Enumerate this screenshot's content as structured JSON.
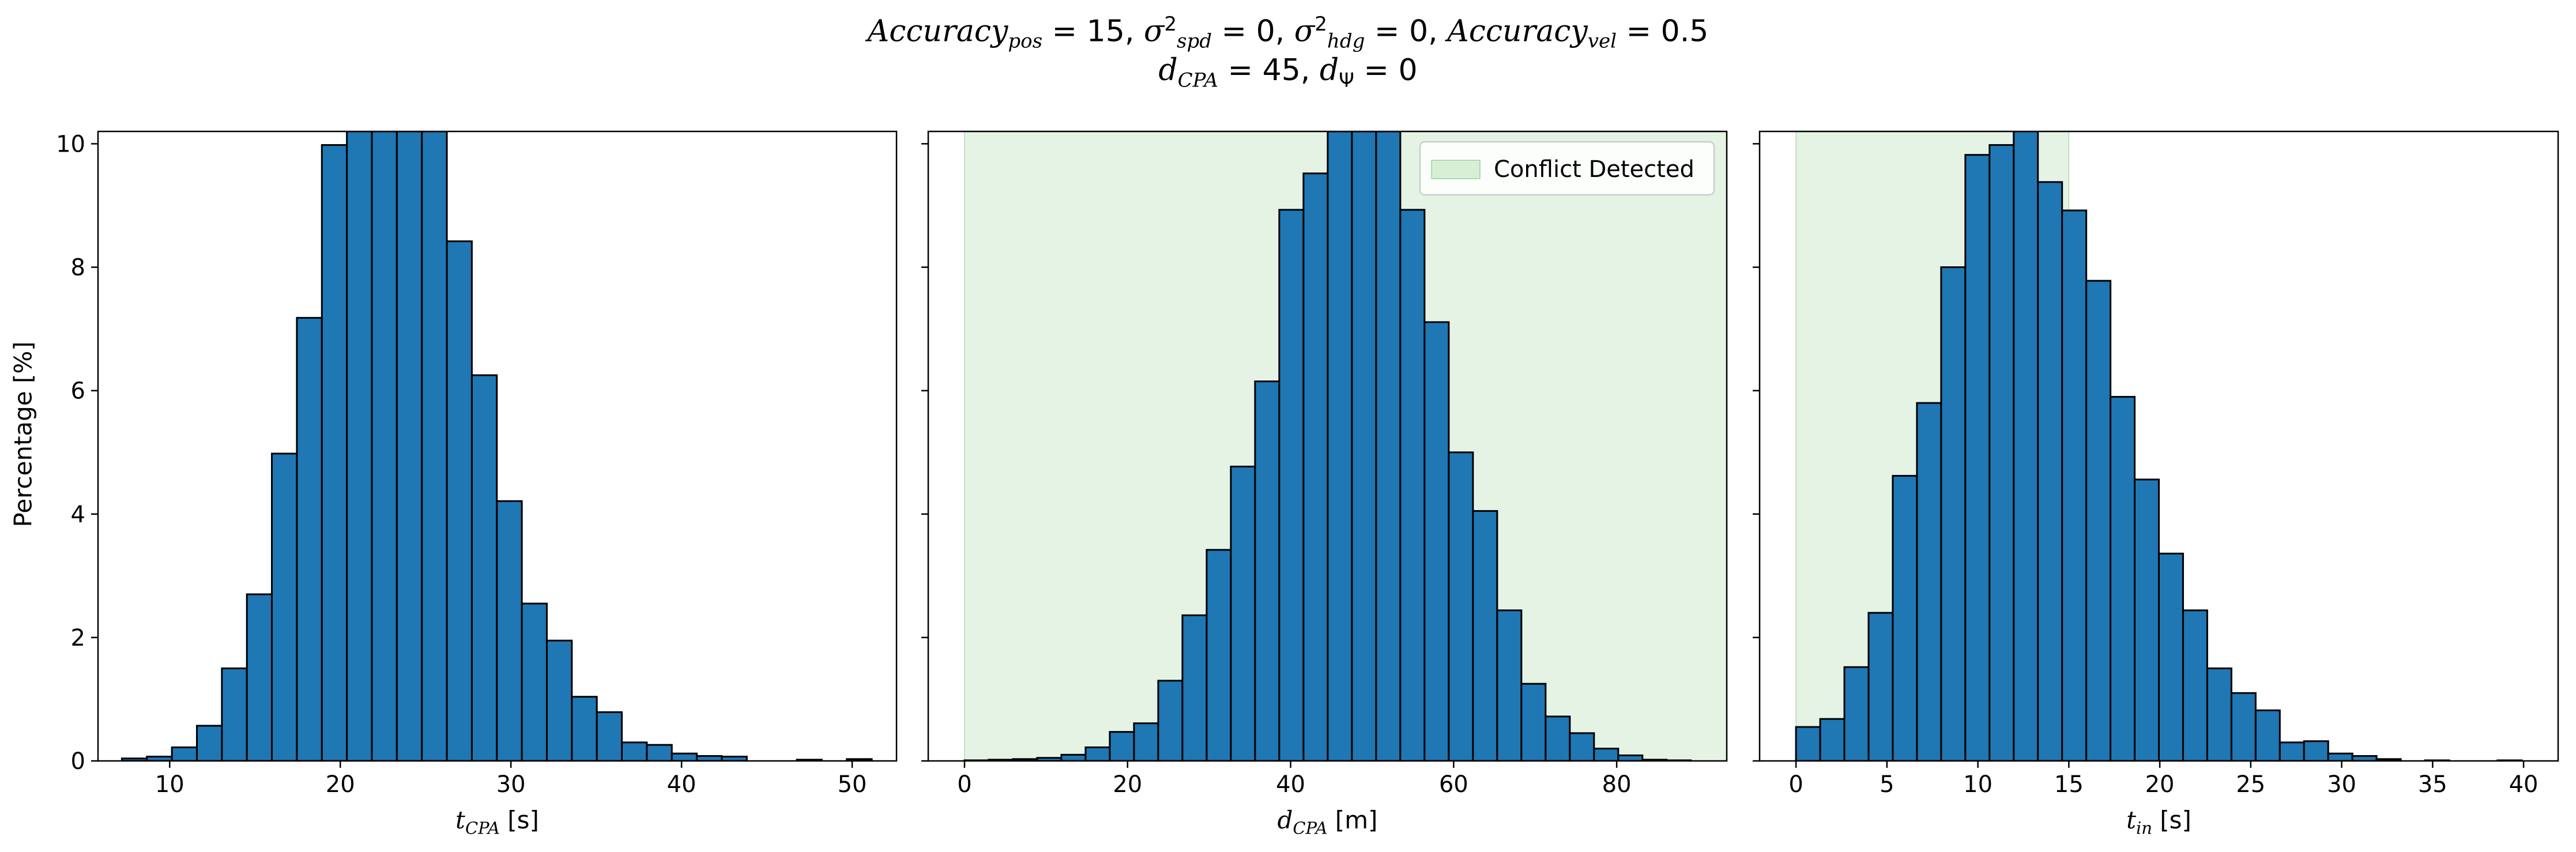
{
  "title": {
    "line1_parts": [
      "Accuracy",
      "pos",
      " = 15, ",
      "σ",
      "2",
      "spd",
      " = 0, ",
      "σ",
      "2",
      "hdg",
      " = 0, ",
      "Accuracy",
      "vel",
      " = 0.5"
    ],
    "line2_parts": [
      "d",
      "CPA",
      " = 45, ",
      "d",
      "Ψ",
      " = 0"
    ]
  },
  "colors": {
    "bar_fill": "#1f77b4",
    "bar_edge": "#000000",
    "conflict_fill": "#2ca02c",
    "conflict_fill_opacity": 0.12
  },
  "chart_data": [
    {
      "type": "bar",
      "name": "t_cpa_histogram",
      "xlabel": {
        "var": "t",
        "sub": "CPA",
        "unit": " [s]"
      },
      "ylabel": "Percentage [%]",
      "xlim": [
        5.8,
        52.6
      ],
      "ylim": [
        0,
        10.2
      ],
      "xticks": [
        10,
        20,
        30,
        40,
        50
      ],
      "yticks": [
        0,
        2,
        4,
        6,
        8,
        10
      ],
      "bin_start": 7.2,
      "bin_width": 1.465,
      "values": [
        0.04,
        0.07,
        0.22,
        0.57,
        1.5,
        2.7,
        4.98,
        7.18,
        9.98,
        10.2,
        10.2,
        10.2,
        10.2,
        8.42,
        6.25,
        4.21,
        2.55,
        1.95,
        1.04,
        0.79,
        0.3,
        0.26,
        0.12,
        0.08,
        0.07,
        0.0,
        0.0,
        0.02,
        0.0,
        0.03
      ],
      "shade": null,
      "legend": null
    },
    {
      "type": "bar",
      "name": "d_cpa_histogram",
      "xlabel": {
        "var": "d",
        "sub": "CPA",
        "unit": " [m]"
      },
      "ylabel": "",
      "xlim": [
        -4.45,
        93.5
      ],
      "ylim": [
        0,
        10.2
      ],
      "xticks": [
        0,
        20,
        40,
        60,
        80
      ],
      "yticks": [
        0,
        2,
        4,
        6,
        8,
        10
      ],
      "bin_start": 0.0,
      "bin_width": 2.97,
      "values": [
        0.01,
        0.02,
        0.03,
        0.05,
        0.1,
        0.22,
        0.47,
        0.61,
        1.3,
        2.36,
        3.42,
        4.77,
        6.15,
        8.93,
        9.52,
        10.2,
        10.2,
        10.2,
        8.93,
        7.11,
        5.0,
        4.05,
        2.44,
        1.25,
        0.72,
        0.45,
        0.2,
        0.09,
        0.02,
        0.01
      ],
      "shade": {
        "from": 0,
        "to": 93.5,
        "label": "Conflict Detected"
      },
      "legend": {
        "label": "Conflict Detected",
        "loc": "upper right"
      }
    },
    {
      "type": "bar",
      "name": "t_in_histogram",
      "xlabel": {
        "var": "t",
        "sub": "in",
        "unit": " [s]"
      },
      "ylabel": "",
      "xlim": [
        -2.0,
        41.9
      ],
      "ylim": [
        0,
        10.2
      ],
      "xticks": [
        0,
        5,
        10,
        15,
        20,
        25,
        30,
        35,
        40
      ],
      "yticks": [
        0,
        2,
        4,
        6,
        8,
        10
      ],
      "bin_start": 0.0,
      "bin_width": 1.33,
      "values": [
        0.55,
        0.68,
        1.52,
        2.4,
        4.62,
        5.8,
        8.0,
        9.82,
        9.98,
        10.2,
        9.38,
        8.92,
        7.78,
        5.9,
        4.56,
        3.36,
        2.44,
        1.5,
        1.1,
        0.82,
        0.3,
        0.32,
        0.12,
        0.08,
        0.03,
        0.0,
        0.01,
        0.0,
        0.0,
        0.01
      ],
      "shade": {
        "from": 0,
        "to": 15,
        "label": "Conflict Detected"
      },
      "legend": null
    }
  ]
}
